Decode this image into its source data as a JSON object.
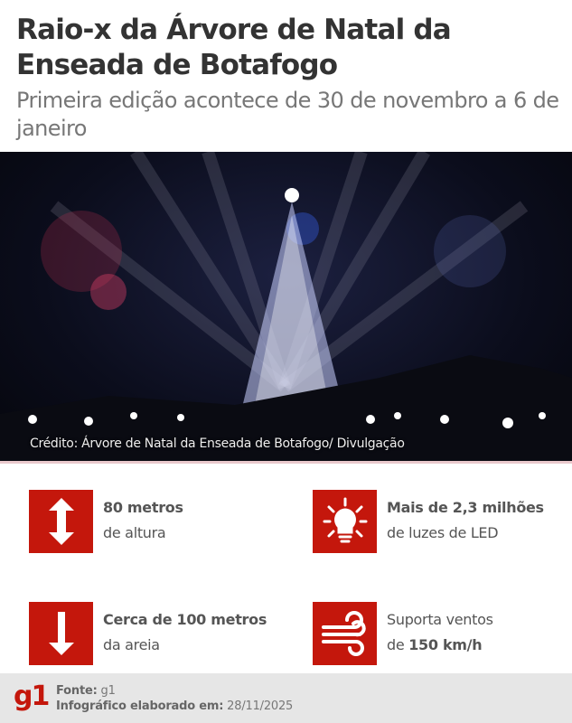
{
  "header": {
    "title": "Raio-x da Árvore de Natal da Enseada de Botafogo",
    "subtitle": "Primeira edição acontece de 30 de novembro a 6 de janeiro"
  },
  "photo": {
    "credit": "Crédito: Árvore de Natal da Enseada de Botafogo/ Divulgação"
  },
  "facts": [
    {
      "icon": "up-down-arrow-icon",
      "bold": "80 metros",
      "text": "de altura"
    },
    {
      "icon": "lightbulb-icon",
      "bold": "Mais de 2,3 milhões",
      "text": "de luzes de LED"
    },
    {
      "icon": "down-arrow-icon",
      "bold": "Cerca de 100 metros",
      "text": "da areia"
    },
    {
      "icon": "wind-icon",
      "text_prefix": "Suporta ventos",
      "text_mid": "de ",
      "bold": "150 km/h"
    }
  ],
  "footer": {
    "logo": "g1",
    "source_label": "Fonte:",
    "source": "g1",
    "date_label": "Infográfico elaborado em:",
    "date": "28/11/2025"
  },
  "colors": {
    "accent": "#c4170c",
    "title": "#333333",
    "subtitle": "#777777"
  }
}
